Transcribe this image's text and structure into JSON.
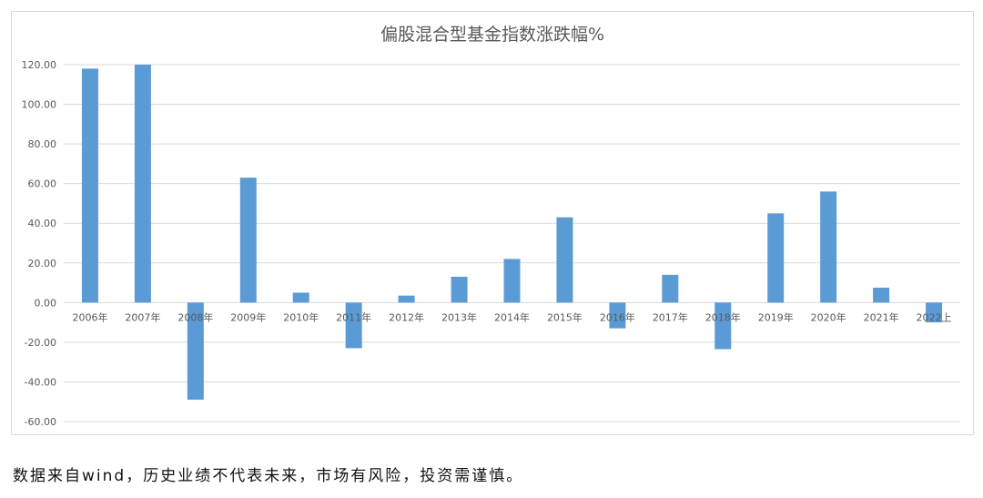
{
  "chart_data": {
    "type": "bar",
    "title": "偏股混合型基金指数涨跌幅%",
    "categories": [
      "2006年",
      "2007年",
      "2008年",
      "2009年",
      "2010年",
      "2011年",
      "2012年",
      "2013年",
      "2014年",
      "2015年",
      "2016年",
      "2017年",
      "2018年",
      "2019年",
      "2020年",
      "2021年",
      "2022上"
    ],
    "series": [
      {
        "values": [
          118.0,
          120.0,
          -49.0,
          63.0,
          5.0,
          -23.0,
          3.5,
          13.0,
          22.0,
          43.0,
          -13.0,
          14.0,
          -23.5,
          45.0,
          56.0,
          7.5,
          -10.0
        ]
      }
    ],
    "yticks": [
      "120.00",
      "100.00",
      "80.00",
      "60.00",
      "40.00",
      "20.00",
      "0.00",
      "-20.00",
      "-40.00",
      "-60.00"
    ],
    "ylim": [
      -60,
      120
    ],
    "grid": true,
    "legend": "none",
    "bar_color": "#5b9bd5",
    "grid_color": "#d9d9d9"
  },
  "footer": {
    "note": "数据来自wind，历史业绩不代表未来，市场有风险，投资需谨慎。"
  }
}
